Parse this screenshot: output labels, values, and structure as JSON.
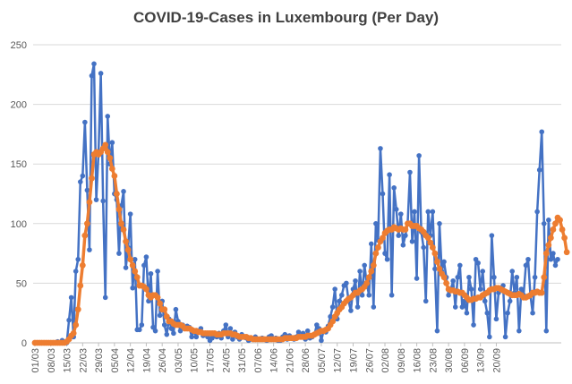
{
  "chart_data": {
    "type": "line",
    "title": "COVID-19-Cases in Luxembourg (Per Day)",
    "xlabel": "",
    "ylabel": "",
    "ylim": [
      0,
      250
    ],
    "yticks": [
      0,
      50,
      100,
      150,
      200,
      250
    ],
    "grid": true,
    "legend": "none",
    "colors": {
      "daily": "#4472c4",
      "average": "#ed7d31"
    },
    "x_tick_labels": [
      "01/03",
      "08/03",
      "15/03",
      "22/03",
      "29/03",
      "05/04",
      "12/04",
      "19/04",
      "26/04",
      "03/05",
      "10/05",
      "17/05",
      "24/05",
      "31/05",
      "07/06",
      "14/06",
      "21/06",
      "28/06",
      "05/07",
      "12/07",
      "19/07",
      "26/07",
      "02/08",
      "09/08",
      "16/08",
      "23/08",
      "30/08",
      "06/09",
      "13/09",
      "20/09"
    ],
    "start_date": "01/03",
    "series": [
      {
        "values": [
          0,
          0,
          0,
          0,
          0,
          0,
          0,
          0,
          0,
          0,
          1,
          0,
          2,
          0,
          0,
          19,
          38,
          5,
          60,
          70,
          135,
          140,
          185,
          128,
          78,
          224,
          234,
          120,
          160,
          226,
          119,
          38,
          190,
          150,
          168,
          125,
          120,
          75,
          115,
          127,
          63,
          80,
          108,
          46,
          70,
          11,
          11,
          15,
          65,
          72,
          35,
          58,
          13,
          10,
          60,
          23,
          35,
          15,
          7,
          20,
          12,
          8,
          28,
          18,
          10,
          15,
          12,
          14,
          13,
          5,
          10,
          5,
          10,
          12,
          6,
          8,
          5,
          2,
          4,
          6,
          5,
          8,
          4,
          10,
          15,
          5,
          12,
          3,
          9,
          5,
          3,
          7,
          5,
          4,
          2,
          3,
          3,
          5,
          3,
          3,
          4,
          3,
          2,
          5,
          6,
          3,
          4,
          2,
          2,
          5,
          7,
          3,
          6,
          4,
          3,
          5,
          9,
          5,
          8,
          3,
          10,
          4,
          5,
          7,
          15,
          12,
          2,
          10,
          9,
          14,
          22,
          30,
          45,
          20,
          35,
          40,
          48,
          50,
          35,
          27,
          45,
          52,
          30,
          60,
          40,
          65,
          50,
          40,
          83,
          30,
          100,
          86,
          163,
          125,
          75,
          70,
          141,
          40,
          130,
          112,
          90,
          108,
          82,
          90,
          100,
          143,
          85,
          110,
          54,
          157,
          93,
          80,
          35,
          110,
          90,
          110,
          62,
          10,
          100,
          60,
          68,
          55,
          40,
          45,
          52,
          30,
          55,
          65,
          30,
          35,
          25,
          55,
          45,
          15,
          70,
          67,
          45,
          60,
          35,
          25,
          5,
          90,
          55,
          20,
          42,
          45,
          48,
          5,
          25,
          35,
          60,
          42,
          55,
          10,
          45,
          40,
          65,
          70,
          40,
          25,
          55,
          110,
          145,
          177,
          100,
          10,
          103,
          70,
          75,
          65,
          70
        ]
      },
      {
        "values": [
          0,
          0,
          0,
          0,
          0,
          0,
          0,
          0,
          0,
          0,
          0,
          0,
          0,
          0,
          1,
          3,
          6,
          8,
          15,
          28,
          48,
          65,
          90,
          100,
          118,
          138,
          158,
          160,
          158,
          160,
          163,
          166,
          160,
          155,
          146,
          140,
          125,
          112,
          100,
          95,
          85,
          78,
          70,
          65,
          60,
          55,
          48,
          48,
          47,
          45,
          40,
          38,
          40,
          40,
          38,
          33,
          28,
          28,
          22,
          18,
          18,
          16,
          15,
          15,
          15,
          14,
          12,
          12,
          12,
          11,
          10,
          10,
          9,
          9,
          8,
          8,
          8,
          8,
          8,
          8,
          7,
          7,
          7,
          8,
          8,
          8,
          8,
          7,
          7,
          6,
          5,
          5,
          5,
          5,
          4,
          4,
          3,
          3,
          3,
          3,
          3,
          3,
          3,
          3,
          3,
          3,
          3,
          3,
          3,
          3,
          4,
          4,
          4,
          4,
          4,
          4,
          5,
          5,
          5,
          5,
          6,
          6,
          6,
          7,
          8,
          9,
          10,
          10,
          11,
          12,
          15,
          18,
          22,
          25,
          28,
          30,
          33,
          35,
          37,
          38,
          40,
          42,
          42,
          44,
          45,
          47,
          50,
          55,
          60,
          65,
          75,
          80,
          85,
          88,
          92,
          94,
          95,
          95,
          97,
          96,
          95,
          96,
          95,
          95,
          100,
          100,
          98,
          98,
          98,
          96,
          95,
          93,
          90,
          88,
          84,
          80,
          75,
          68,
          62,
          58,
          55,
          50,
          45,
          44,
          44,
          43,
          43,
          42,
          42,
          40,
          38,
          36,
          36,
          37,
          37,
          38,
          38,
          40,
          41,
          42,
          44,
          45,
          45,
          46,
          46,
          45,
          44,
          43,
          42,
          41,
          40,
          40,
          40,
          41,
          40,
          38,
          38,
          39,
          40,
          42,
          42,
          43,
          42,
          42,
          55,
          75,
          82,
          88,
          95,
          100,
          105,
          103,
          95,
          88,
          76
        ]
      }
    ]
  }
}
